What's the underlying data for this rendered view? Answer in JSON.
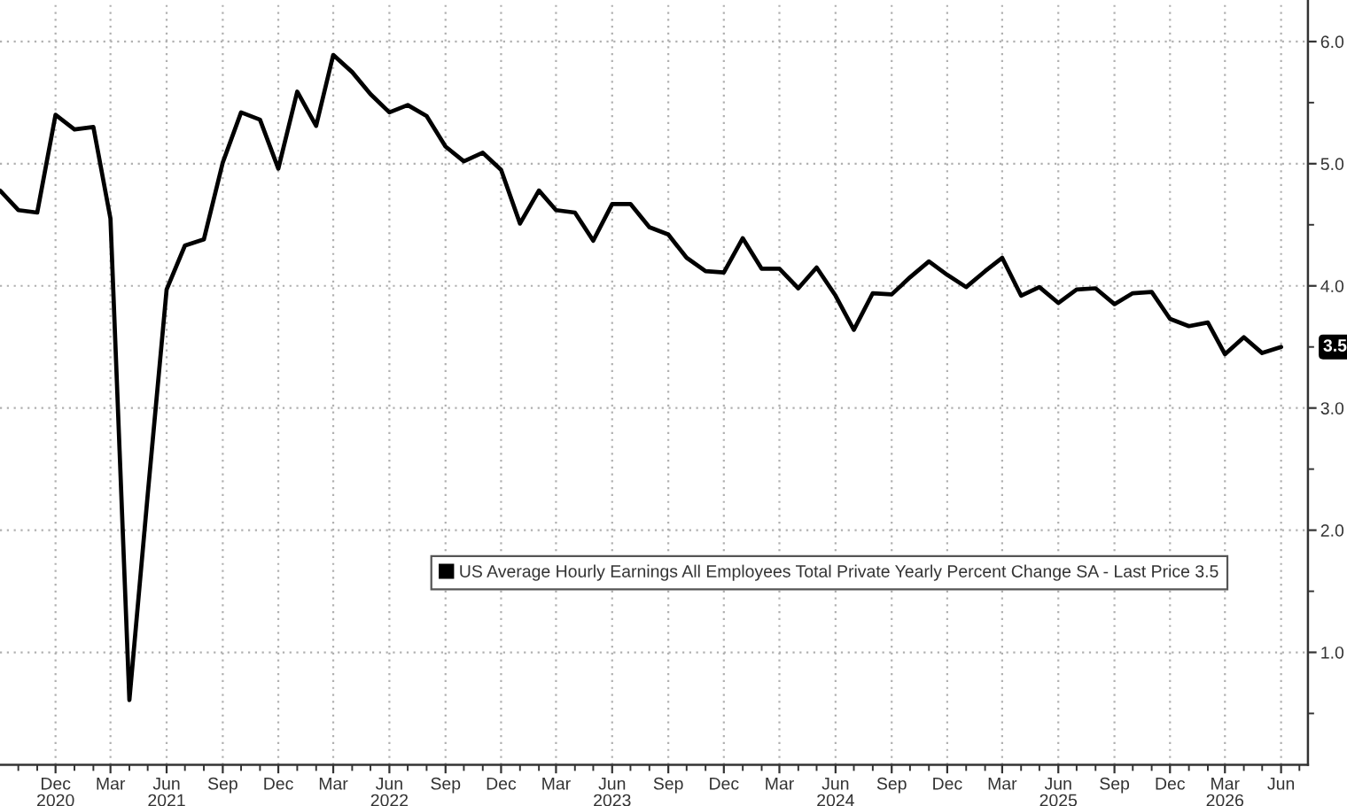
{
  "chart_data": {
    "type": "line",
    "x": [
      "2020-09",
      "2020-10",
      "2020-11",
      "2020-12",
      "2021-01",
      "2021-02",
      "2021-03",
      "2021-04",
      "2021-05",
      "2021-06",
      "2021-07",
      "2021-08",
      "2021-09",
      "2021-10",
      "2021-11",
      "2021-12",
      "2022-01",
      "2022-02",
      "2022-03",
      "2022-04",
      "2022-05",
      "2022-06",
      "2022-07",
      "2022-08",
      "2022-09",
      "2022-10",
      "2022-11",
      "2022-12",
      "2023-01",
      "2023-02",
      "2023-03",
      "2023-04",
      "2023-05",
      "2023-06",
      "2023-07",
      "2023-08",
      "2023-09",
      "2023-10",
      "2023-11",
      "2023-12",
      "2024-01",
      "2024-02",
      "2024-03",
      "2024-04",
      "2024-05",
      "2024-06",
      "2024-07",
      "2024-08",
      "2024-09",
      "2024-10",
      "2024-11",
      "2024-12",
      "2025-01",
      "2025-02",
      "2025-03",
      "2025-04",
      "2025-05",
      "2025-06",
      "2025-07",
      "2025-08",
      "2025-09",
      "2025-10",
      "2025-11",
      "2025-12",
      "2026-01",
      "2026-02",
      "2026-03",
      "2026-04",
      "2026-05",
      "2026-06"
    ],
    "series": [
      {
        "name": "US Average Hourly Earnings All Employees Total Private Yearly Percent Change SA - Last Price 3.5",
        "color": "#000000",
        "values": [
          4.78,
          4.62,
          4.6,
          5.4,
          5.28,
          5.3,
          4.55,
          0.61,
          2.29,
          3.97,
          4.33,
          4.38,
          5.01,
          5.42,
          5.36,
          4.96,
          5.59,
          5.31,
          5.89,
          5.75,
          5.57,
          5.42,
          5.48,
          5.39,
          5.14,
          5.02,
          5.09,
          4.95,
          4.51,
          4.78,
          4.62,
          4.6,
          4.37,
          4.67,
          4.67,
          4.48,
          4.42,
          4.23,
          4.12,
          4.11,
          4.39,
          4.14,
          4.14,
          3.98,
          4.15,
          3.92,
          3.64,
          3.94,
          3.93,
          4.07,
          4.2,
          4.09,
          3.99,
          4.12,
          4.23,
          3.92,
          3.99,
          3.86,
          3.97,
          3.98,
          3.85,
          3.94,
          3.95,
          3.73,
          3.67,
          3.7,
          3.44,
          3.58,
          3.45,
          3.5
        ]
      }
    ],
    "xlim": [
      "2020-09-01",
      "2026-07-15"
    ],
    "xticks": [
      {
        "value": "2020-12",
        "label": "Dec\n2020"
      },
      {
        "value": "2021-03",
        "label": "Mar"
      },
      {
        "value": "2021-06",
        "label": "Jun\n2021"
      },
      {
        "value": "2021-09",
        "label": "Sep"
      },
      {
        "value": "2021-12",
        "label": "Dec"
      },
      {
        "value": "2022-03",
        "label": "Mar"
      },
      {
        "value": "2022-06",
        "label": "Jun\n2022"
      },
      {
        "value": "2022-09",
        "label": "Sep"
      },
      {
        "value": "2022-12",
        "label": "Dec"
      },
      {
        "value": "2023-03",
        "label": "Mar"
      },
      {
        "value": "2023-06",
        "label": "Jun\n2023"
      },
      {
        "value": "2023-09",
        "label": "Sep"
      },
      {
        "value": "2023-12",
        "label": "Dec"
      },
      {
        "value": "2024-03",
        "label": "Mar"
      },
      {
        "value": "2024-06",
        "label": "Jun\n2024"
      },
      {
        "value": "2024-09",
        "label": "Sep"
      },
      {
        "value": "2024-12",
        "label": "Dec"
      },
      {
        "value": "2025-03",
        "label": "Mar"
      },
      {
        "value": "2025-06",
        "label": "Jun\n2025"
      },
      {
        "value": "2025-09",
        "label": "Sep"
      },
      {
        "value": "2025-12",
        "label": "Dec"
      },
      {
        "value": "2026-03",
        "label": "Mar\n2026"
      },
      {
        "value": "2026-06",
        "label": "Jun"
      },
      {
        "value": "2020-10",
        "label": null
      },
      {
        "value": "2020-11",
        "label": null
      },
      {
        "value": "2021-01",
        "label": null
      },
      {
        "value": "2021-02",
        "label": null
      },
      {
        "value": "2021-04",
        "label": null
      },
      {
        "value": "2021-05",
        "label": null
      },
      {
        "value": "2021-07",
        "label": null
      },
      {
        "value": "2021-08",
        "label": null
      },
      {
        "value": "2021-10",
        "label": null
      },
      {
        "value": "2021-11",
        "label": null
      },
      {
        "value": "2022-01",
        "label": null
      },
      {
        "value": "2022-02",
        "label": null
      },
      {
        "value": "2022-04",
        "label": null
      },
      {
        "value": "2022-05",
        "label": null
      },
      {
        "value": "2022-07",
        "label": null
      },
      {
        "value": "2022-08",
        "label": null
      },
      {
        "value": "2022-10",
        "label": null
      },
      {
        "value": "2022-11",
        "label": null
      },
      {
        "value": "2023-01",
        "label": null
      },
      {
        "value": "2023-02",
        "label": null
      },
      {
        "value": "2023-04",
        "label": null
      },
      {
        "value": "2023-05",
        "label": null
      },
      {
        "value": "2023-07",
        "label": null
      },
      {
        "value": "2023-08",
        "label": null
      },
      {
        "value": "2023-10",
        "label": null
      },
      {
        "value": "2023-11",
        "label": null
      },
      {
        "value": "2024-01",
        "label": null
      },
      {
        "value": "2024-02",
        "label": null
      },
      {
        "value": "2024-04",
        "label": null
      },
      {
        "value": "2024-05",
        "label": null
      },
      {
        "value": "2024-07",
        "label": null
      },
      {
        "value": "2024-08",
        "label": null
      },
      {
        "value": "2024-10",
        "label": null
      },
      {
        "value": "2024-11",
        "label": null
      },
      {
        "value": "2025-01",
        "label": null
      },
      {
        "value": "2025-02",
        "label": null
      },
      {
        "value": "2025-04",
        "label": null
      },
      {
        "value": "2025-05",
        "label": null
      },
      {
        "value": "2025-07",
        "label": null
      },
      {
        "value": "2025-08",
        "label": null
      },
      {
        "value": "2025-10",
        "label": null
      },
      {
        "value": "2025-11",
        "label": null
      },
      {
        "value": "2026-01",
        "label": null
      },
      {
        "value": "2026-02",
        "label": null
      },
      {
        "value": "2026-04",
        "label": null
      },
      {
        "value": "2026-05",
        "label": null
      },
      {
        "value": "2026-07",
        "label": null
      }
    ],
    "ylim": [
      0.08,
      6.34
    ],
    "yticks": [
      {
        "value": 1,
        "label": "1.0"
      },
      {
        "value": 2,
        "label": "2.0"
      },
      {
        "value": 3,
        "label": "3.0"
      },
      {
        "value": 4,
        "label": "4.0"
      },
      {
        "value": 5,
        "label": "5.0"
      },
      {
        "value": 6,
        "label": "6.0"
      },
      {
        "value": 0.5,
        "label": null
      },
      {
        "value": 1.5,
        "label": null
      },
      {
        "value": 2.5,
        "label": null
      },
      {
        "value": 3.5,
        "label": null
      },
      {
        "value": 4.5,
        "label": null
      },
      {
        "value": 5.5,
        "label": null
      }
    ],
    "grid": true,
    "legend": "bottom right",
    "annotations": [
      "3.5"
    ]
  }
}
